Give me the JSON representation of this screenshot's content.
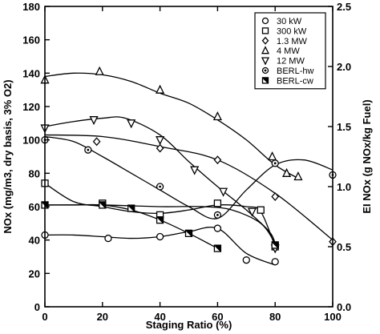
{
  "chart_data": {
    "type": "scatter",
    "title": "",
    "xlabel": "Staging Ratio (%)",
    "ylabel": "NOx (mg/m3, dry basis, 3% O2)",
    "y2label": "EI NOx (g NOx/kg Fuel)",
    "xlim": [
      0,
      100
    ],
    "ylim": [
      0,
      180
    ],
    "y2lim": [
      0,
      2.5
    ],
    "x_ticks": [
      0,
      20,
      40,
      60,
      80,
      100
    ],
    "y_ticks": [
      0,
      20,
      40,
      60,
      80,
      100,
      120,
      140,
      160,
      180
    ],
    "y2_ticks": [
      "0.0",
      "0.5",
      "1.0",
      "1.5",
      "2.0",
      "2.5"
    ],
    "grid": false,
    "legend_position": "top-right",
    "series": [
      {
        "name": "30 kW",
        "marker": "circle",
        "points": [
          [
            0,
            43
          ],
          [
            22,
            41
          ],
          [
            40,
            42
          ],
          [
            60,
            47
          ],
          [
            70,
            28
          ],
          [
            80,
            27
          ]
        ],
        "curve": [
          [
            0,
            43
          ],
          [
            10,
            43
          ],
          [
            20,
            42
          ],
          [
            30,
            41
          ],
          [
            40,
            42
          ],
          [
            50,
            45
          ],
          [
            60,
            47
          ],
          [
            70,
            32
          ],
          [
            80,
            25
          ]
        ]
      },
      {
        "name": "300 kW",
        "marker": "square",
        "points": [
          [
            0,
            74
          ],
          [
            20,
            62
          ],
          [
            40,
            55
          ],
          [
            60,
            62
          ],
          [
            75,
            58
          ],
          [
            80,
            36
          ]
        ],
        "curve": [
          [
            0,
            74
          ],
          [
            10,
            63
          ],
          [
            20,
            60
          ],
          [
            30,
            57
          ],
          [
            40,
            56
          ],
          [
            50,
            58
          ],
          [
            60,
            61
          ],
          [
            70,
            60
          ],
          [
            75,
            57
          ],
          [
            80,
            36
          ]
        ]
      },
      {
        "name": "1.3 MW",
        "marker": "diamond",
        "points": [
          [
            18,
            99
          ],
          [
            40,
            95
          ],
          [
            60,
            88
          ],
          [
            80,
            66
          ],
          [
            100,
            39
          ]
        ],
        "curve": [
          [
            0,
            103
          ],
          [
            20,
            102
          ],
          [
            40,
            96
          ],
          [
            60,
            88
          ],
          [
            80,
            68
          ],
          [
            100,
            40
          ]
        ]
      },
      {
        "name": "4 MW",
        "marker": "triangle-up",
        "points": [
          [
            0,
            136
          ],
          [
            19,
            141
          ],
          [
            40,
            130
          ],
          [
            60,
            114
          ],
          [
            79,
            90
          ],
          [
            84,
            80
          ],
          [
            88,
            78
          ]
        ],
        "curve": [
          [
            0,
            138
          ],
          [
            10,
            140
          ],
          [
            20,
            139
          ],
          [
            30,
            135
          ],
          [
            40,
            128
          ],
          [
            50,
            122
          ],
          [
            60,
            112
          ],
          [
            70,
            100
          ],
          [
            80,
            85
          ],
          [
            88,
            77
          ]
        ]
      },
      {
        "name": "12 MW",
        "marker": "triangle-down",
        "points": [
          [
            0,
            107
          ],
          [
            17,
            112
          ],
          [
            30,
            110
          ],
          [
            40,
            100
          ],
          [
            52,
            82
          ],
          [
            62,
            69
          ],
          [
            72,
            57
          ],
          [
            80,
            35
          ]
        ],
        "curve": [
          [
            0,
            108
          ],
          [
            10,
            111
          ],
          [
            20,
            113
          ],
          [
            28,
            113
          ],
          [
            40,
            103
          ],
          [
            50,
            87
          ],
          [
            60,
            72
          ],
          [
            70,
            58
          ],
          [
            78,
            45
          ],
          [
            80,
            38
          ]
        ]
      },
      {
        "name": "BERL-hw",
        "marker": "circle-dot",
        "points": [
          [
            0,
            100
          ],
          [
            15,
            94
          ],
          [
            40,
            72
          ],
          [
            60,
            55
          ],
          [
            80,
            86
          ],
          [
            100,
            79
          ]
        ],
        "curve": [
          [
            0,
            102
          ],
          [
            10,
            99
          ],
          [
            20,
            90
          ],
          [
            30,
            80
          ],
          [
            40,
            70
          ],
          [
            50,
            60
          ],
          [
            60,
            53
          ],
          [
            70,
            70
          ],
          [
            80,
            85
          ],
          [
            90,
            88
          ],
          [
            100,
            82
          ]
        ]
      },
      {
        "name": "BERL-cw",
        "marker": "square-slash",
        "points": [
          [
            0,
            61
          ],
          [
            20,
            61
          ],
          [
            30,
            59
          ],
          [
            40,
            52
          ],
          [
            50,
            44
          ],
          [
            60,
            35
          ],
          [
            80,
            37
          ]
        ],
        "curve": [
          [
            0,
            61
          ],
          [
            10,
            61
          ],
          [
            20,
            61
          ],
          [
            30,
            58
          ],
          [
            40,
            52
          ],
          [
            50,
            44
          ],
          [
            60,
            35
          ]
        ],
        "curve2": [
          [
            0,
            61
          ],
          [
            20,
            61
          ],
          [
            40,
            60
          ],
          [
            55,
            60
          ],
          [
            65,
            58
          ],
          [
            75,
            50
          ],
          [
            80,
            38
          ]
        ]
      }
    ]
  }
}
